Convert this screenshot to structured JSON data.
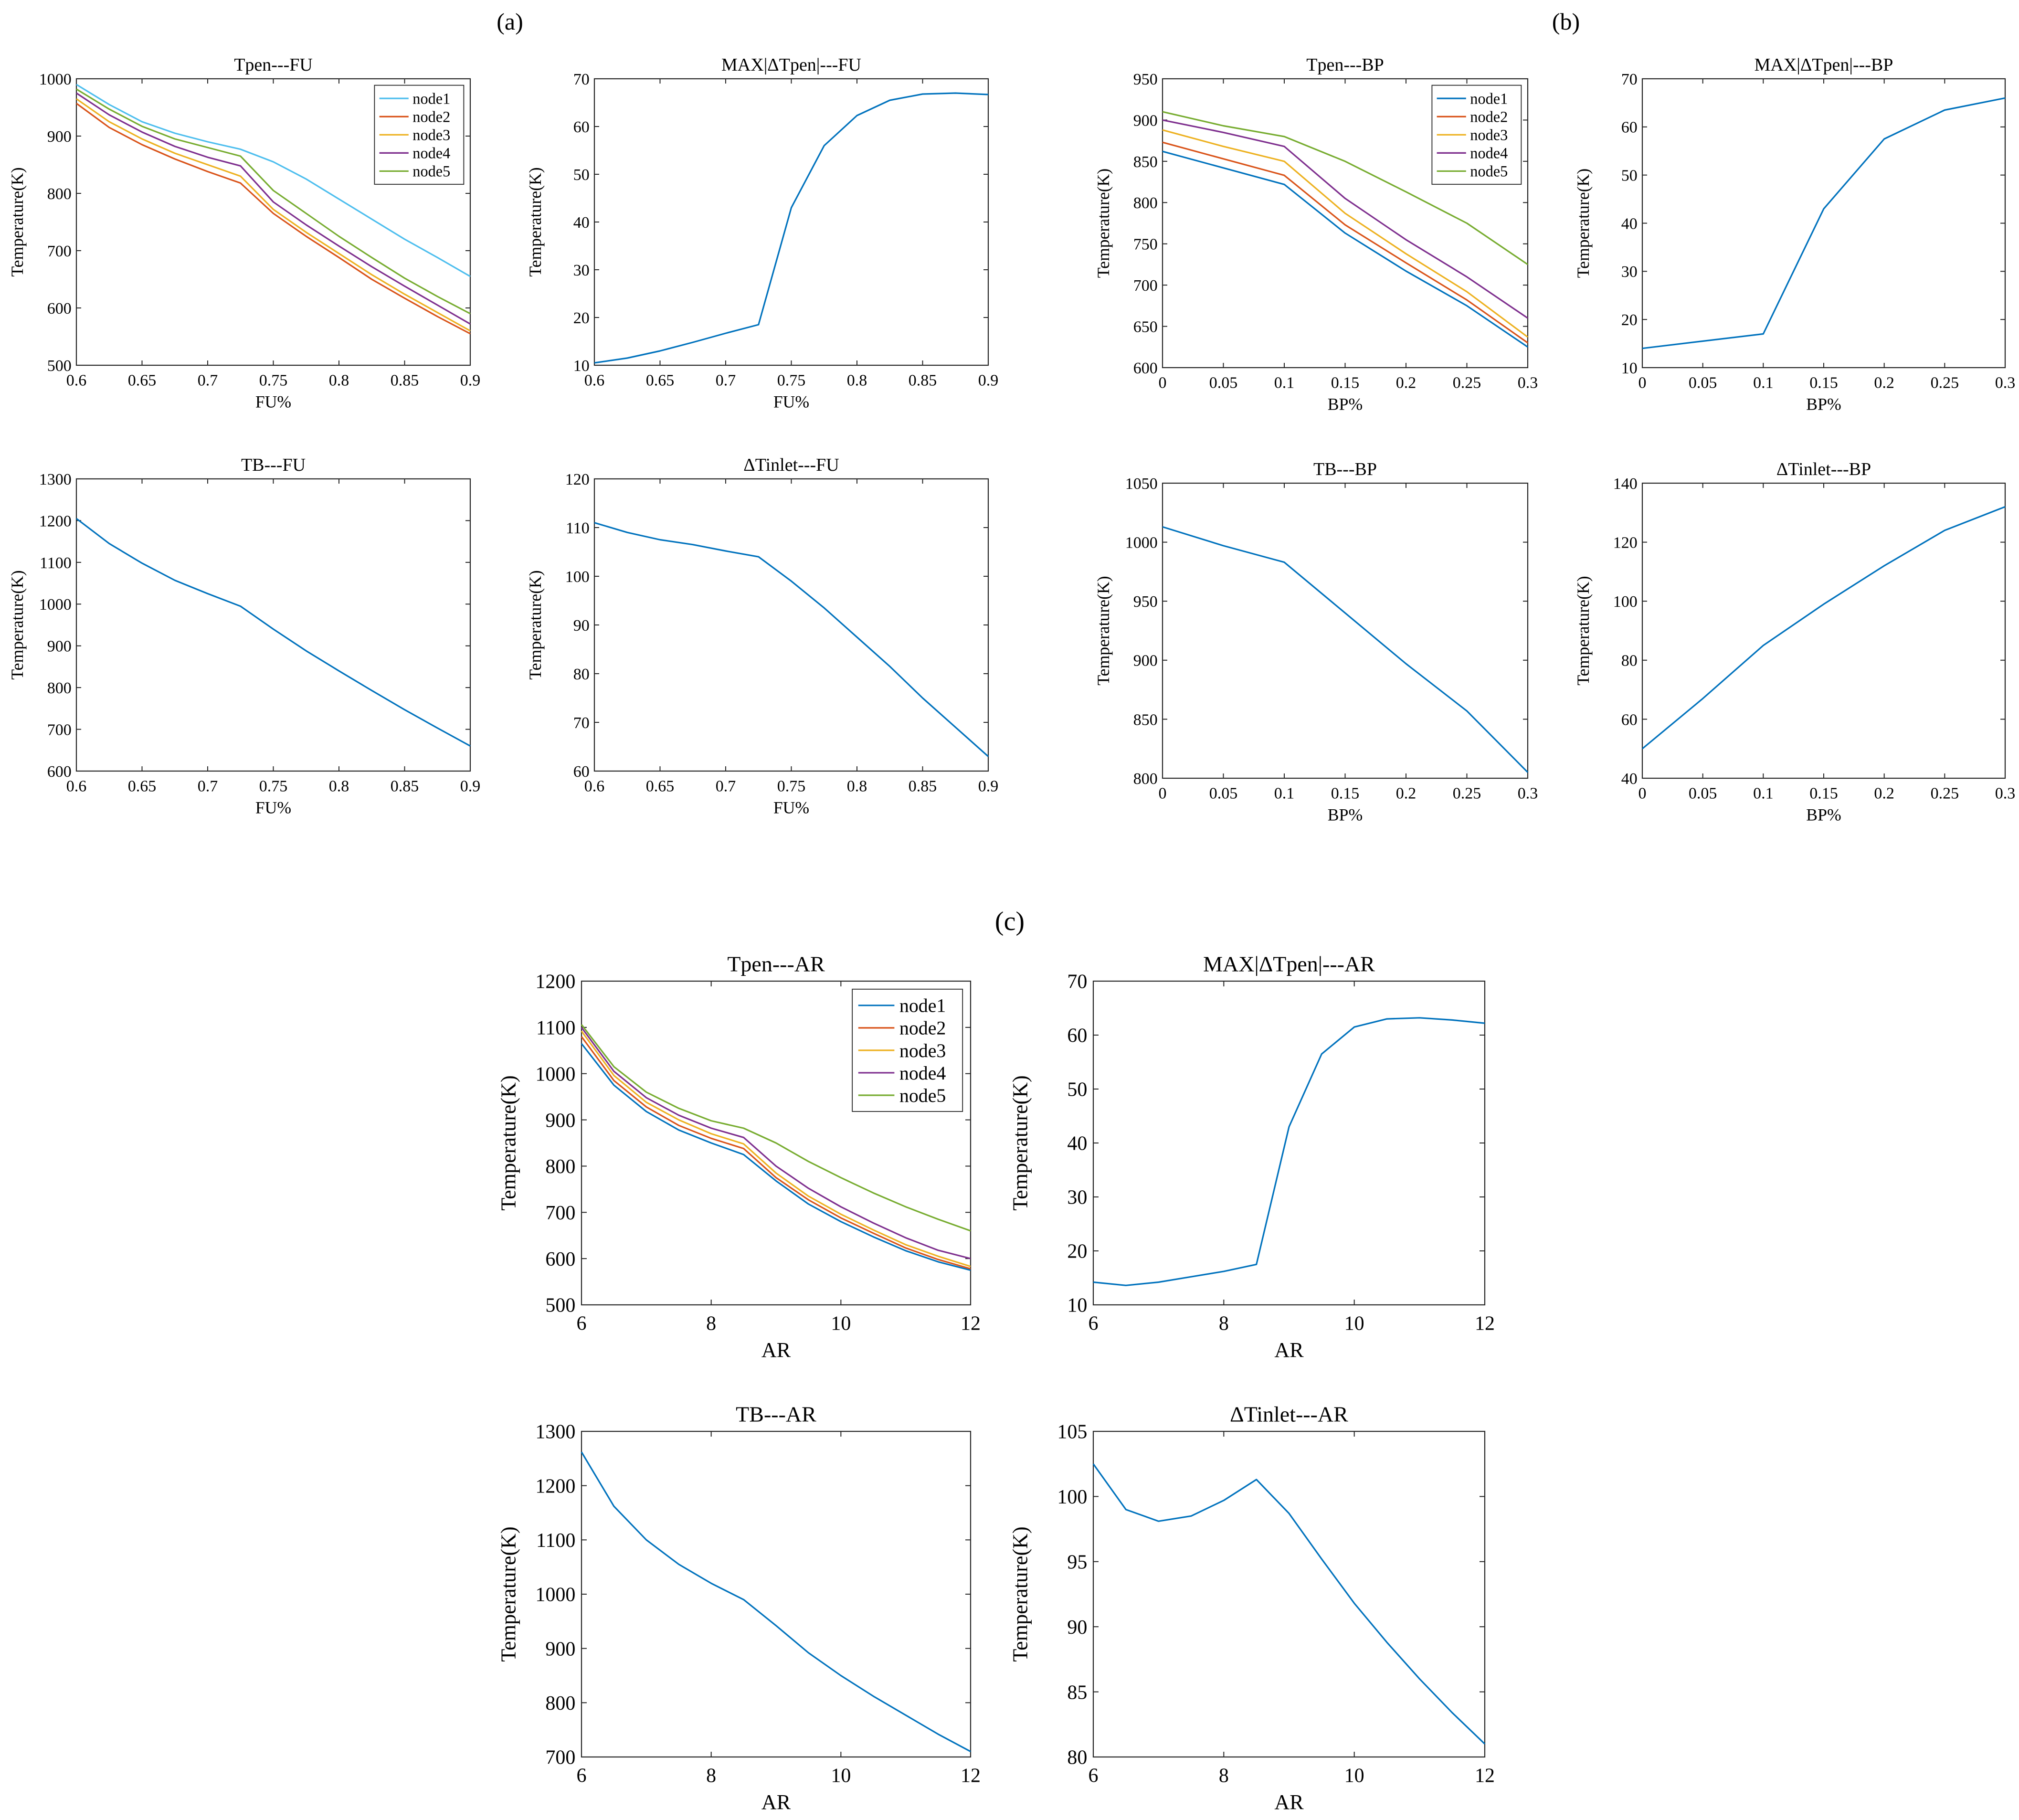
{
  "panel_labels": {
    "a": "(a)",
    "b": "(b)",
    "c": "(c)"
  },
  "colors": {
    "node1_light": "#4DBEEE",
    "node1": "#0072BD",
    "node2": "#D95319",
    "node3": "#EDB120",
    "node4": "#7E2F8E",
    "node5": "#77AC30",
    "single": "#0072BD"
  },
  "chart_data": [
    {
      "id": "tpen-fu",
      "type": "line",
      "title": "Tpen---FU",
      "xlabel": "FU%",
      "ylabel": "Temperature(K)",
      "xlim": [
        0.6,
        0.9
      ],
      "ylim": [
        500,
        1000
      ],
      "xticks": [
        0.6,
        0.65,
        0.7,
        0.75,
        0.8,
        0.85,
        0.9
      ],
      "xtick_labels": [
        "0.6",
        "0.65",
        "0.7",
        "0.75",
        "0.8",
        "0.85",
        "0.9"
      ],
      "yticks": [
        500,
        600,
        700,
        800,
        900,
        1000
      ],
      "ytick_labels": [
        "500",
        "600",
        "700",
        "800",
        "900",
        "1000"
      ],
      "legend_position": "top-right",
      "x": [
        0.6,
        0.625,
        0.65,
        0.675,
        0.7,
        0.725,
        0.75,
        0.775,
        0.8,
        0.825,
        0.85,
        0.875,
        0.9
      ],
      "series": [
        {
          "name": "node1",
          "color": "#4DBEEE",
          "values": [
            990,
            955,
            925,
            905,
            890,
            877,
            855,
            825,
            790,
            755,
            720,
            688,
            655
          ]
        },
        {
          "name": "node2",
          "color": "#D95319",
          "values": [
            957,
            915,
            885,
            860,
            838,
            818,
            765,
            725,
            688,
            650,
            617,
            585,
            555
          ]
        },
        {
          "name": "node3",
          "color": "#EDB120",
          "values": [
            965,
            925,
            895,
            870,
            850,
            830,
            772,
            732,
            695,
            658,
            624,
            592,
            560
          ]
        },
        {
          "name": "node4",
          "color": "#7E2F8E",
          "values": [
            975,
            937,
            907,
            882,
            863,
            848,
            785,
            745,
            708,
            672,
            638,
            605,
            572
          ]
        },
        {
          "name": "node5",
          "color": "#77AC30",
          "values": [
            982,
            947,
            917,
            895,
            880,
            865,
            805,
            765,
            725,
            688,
            652,
            620,
            590
          ]
        }
      ]
    },
    {
      "id": "maxdtpen-fu",
      "type": "line",
      "title": "MAX|ΔTpen|---FU",
      "xlabel": "FU%",
      "ylabel": "Temperature(K)",
      "xlim": [
        0.6,
        0.9
      ],
      "ylim": [
        10,
        70
      ],
      "xticks": [
        0.6,
        0.65,
        0.7,
        0.75,
        0.8,
        0.85,
        0.9
      ],
      "xtick_labels": [
        "0.6",
        "0.65",
        "0.7",
        "0.75",
        "0.8",
        "0.85",
        "0.9"
      ],
      "yticks": [
        10,
        20,
        30,
        40,
        50,
        60,
        70
      ],
      "ytick_labels": [
        "10",
        "20",
        "30",
        "40",
        "50",
        "60",
        "70"
      ],
      "x": [
        0.6,
        0.625,
        0.65,
        0.675,
        0.7,
        0.725,
        0.75,
        0.775,
        0.8,
        0.825,
        0.85,
        0.875,
        0.9
      ],
      "series": [
        {
          "color": "#0072BD",
          "values": [
            10.5,
            11.5,
            13,
            14.8,
            16.7,
            18.5,
            43,
            56,
            62.3,
            65.5,
            66.8,
            67,
            66.7
          ]
        }
      ]
    },
    {
      "id": "tb-fu",
      "type": "line",
      "title": "TB---FU",
      "xlabel": "FU%",
      "ylabel": "Temperature(K)",
      "xlim": [
        0.6,
        0.9
      ],
      "ylim": [
        600,
        1300
      ],
      "xticks": [
        0.6,
        0.65,
        0.7,
        0.75,
        0.8,
        0.85,
        0.9
      ],
      "xtick_labels": [
        "0.6",
        "0.65",
        "0.7",
        "0.75",
        "0.8",
        "0.85",
        "0.9"
      ],
      "yticks": [
        600,
        700,
        800,
        900,
        1000,
        1100,
        1200,
        1300
      ],
      "ytick_labels": [
        "600",
        "700",
        "800",
        "900",
        "1000",
        "1100",
        "1200",
        "1300"
      ],
      "x": [
        0.6,
        0.625,
        0.65,
        0.675,
        0.7,
        0.725,
        0.75,
        0.775,
        0.8,
        0.825,
        0.85,
        0.875,
        0.9
      ],
      "series": [
        {
          "color": "#0072BD",
          "values": [
            1205,
            1145,
            1098,
            1057,
            1025,
            995,
            940,
            888,
            840,
            793,
            747,
            703,
            660
          ]
        }
      ]
    },
    {
      "id": "dtinlet-fu",
      "type": "line",
      "title": "ΔTinlet---FU",
      "xlabel": "FU%",
      "ylabel": "Temperature(K)",
      "xlim": [
        0.6,
        0.9
      ],
      "ylim": [
        60,
        120
      ],
      "xticks": [
        0.6,
        0.65,
        0.7,
        0.75,
        0.8,
        0.85,
        0.9
      ],
      "xtick_labels": [
        "0.6",
        "0.65",
        "0.7",
        "0.75",
        "0.8",
        "0.85",
        "0.9"
      ],
      "yticks": [
        60,
        70,
        80,
        90,
        100,
        110,
        120
      ],
      "ytick_labels": [
        "60",
        "70",
        "80",
        "90",
        "100",
        "110",
        "120"
      ],
      "x": [
        0.6,
        0.625,
        0.65,
        0.675,
        0.7,
        0.725,
        0.75,
        0.775,
        0.8,
        0.825,
        0.85,
        0.875,
        0.9
      ],
      "series": [
        {
          "color": "#0072BD",
          "values": [
            111,
            109,
            107.5,
            106.5,
            105.2,
            104,
            99,
            93.5,
            87.5,
            81.5,
            75,
            69,
            63
          ]
        }
      ]
    },
    {
      "id": "tpen-bp",
      "type": "line",
      "title": "Tpen---BP",
      "xlabel": "BP%",
      "ylabel": "Temperature(K)",
      "xlim": [
        0,
        0.3
      ],
      "ylim": [
        600,
        950
      ],
      "xticks": [
        0,
        0.05,
        0.1,
        0.15,
        0.2,
        0.25,
        0.3
      ],
      "xtick_labels": [
        "0",
        "0.05",
        "0.1",
        "0.15",
        "0.2",
        "0.25",
        "0.3"
      ],
      "yticks": [
        600,
        650,
        700,
        750,
        800,
        850,
        900,
        950
      ],
      "ytick_labels": [
        "600",
        "650",
        "700",
        "750",
        "800",
        "850",
        "900",
        "950"
      ],
      "legend_position": "top-right",
      "x": [
        0,
        0.05,
        0.1,
        0.15,
        0.2,
        0.25,
        0.3
      ],
      "series": [
        {
          "name": "node1",
          "color": "#0072BD",
          "values": [
            862,
            842,
            822,
            763,
            717,
            675,
            625
          ]
        },
        {
          "name": "node2",
          "color": "#D95319",
          "values": [
            873,
            853,
            833,
            773,
            727,
            682,
            630
          ]
        },
        {
          "name": "node3",
          "color": "#EDB120",
          "values": [
            888,
            868,
            850,
            787,
            738,
            692,
            637
          ]
        },
        {
          "name": "node4",
          "color": "#7E2F8E",
          "values": [
            900,
            885,
            868,
            805,
            755,
            710,
            660
          ]
        },
        {
          "name": "node5",
          "color": "#77AC30",
          "values": [
            910,
            893,
            880,
            850,
            813,
            775,
            725
          ]
        }
      ]
    },
    {
      "id": "maxdtpen-bp",
      "type": "line",
      "title": "MAX|ΔTpen|---BP",
      "xlabel": "BP%",
      "ylabel": "Temperature(K)",
      "xlim": [
        0,
        0.3
      ],
      "ylim": [
        10,
        70
      ],
      "xticks": [
        0,
        0.05,
        0.1,
        0.15,
        0.2,
        0.25,
        0.3
      ],
      "xtick_labels": [
        "0",
        "0.05",
        "0.1",
        "0.15",
        "0.2",
        "0.25",
        "0.3"
      ],
      "yticks": [
        10,
        20,
        30,
        40,
        50,
        60,
        70
      ],
      "ytick_labels": [
        "10",
        "20",
        "30",
        "40",
        "50",
        "60",
        "70"
      ],
      "x": [
        0,
        0.05,
        0.1,
        0.15,
        0.2,
        0.25,
        0.3
      ],
      "series": [
        {
          "color": "#0072BD",
          "values": [
            14,
            15.5,
            17,
            43,
            57.5,
            63.5,
            66
          ]
        }
      ]
    },
    {
      "id": "tb-bp",
      "type": "line",
      "title": "TB---BP",
      "xlabel": "BP%",
      "ylabel": "Temperature(K)",
      "xlim": [
        0,
        0.3
      ],
      "ylim": [
        800,
        1050
      ],
      "xticks": [
        0,
        0.05,
        0.1,
        0.15,
        0.2,
        0.25,
        0.3
      ],
      "xtick_labels": [
        "0",
        "0.05",
        "0.1",
        "0.15",
        "0.2",
        "0.25",
        "0.3"
      ],
      "yticks": [
        800,
        850,
        900,
        950,
        1000,
        1050
      ],
      "ytick_labels": [
        "800",
        "850",
        "900",
        "950",
        "1000",
        "1050"
      ],
      "x": [
        0,
        0.05,
        0.1,
        0.15,
        0.2,
        0.25,
        0.3
      ],
      "series": [
        {
          "color": "#0072BD",
          "values": [
            1013,
            997,
            983,
            940,
            897,
            857,
            805
          ]
        }
      ]
    },
    {
      "id": "dtinlet-bp",
      "type": "line",
      "title": "ΔTinlet---BP",
      "xlabel": "BP%",
      "ylabel": "Temperature(K)",
      "xlim": [
        0,
        0.3
      ],
      "ylim": [
        40,
        140
      ],
      "xticks": [
        0,
        0.05,
        0.1,
        0.15,
        0.2,
        0.25,
        0.3
      ],
      "xtick_labels": [
        "0",
        "0.05",
        "0.1",
        "0.15",
        "0.2",
        "0.25",
        "0.3"
      ],
      "yticks": [
        40,
        60,
        80,
        100,
        120,
        140
      ],
      "ytick_labels": [
        "40",
        "60",
        "80",
        "100",
        "120",
        "140"
      ],
      "x": [
        0,
        0.05,
        0.1,
        0.15,
        0.2,
        0.25,
        0.3
      ],
      "series": [
        {
          "color": "#0072BD",
          "values": [
            50,
            67,
            85,
            99,
            112,
            124,
            132
          ]
        }
      ]
    },
    {
      "id": "tpen-ar",
      "type": "line",
      "title": "Tpen---AR",
      "xlabel": "AR",
      "ylabel": "Temperature(K)",
      "xlim": [
        6,
        12
      ],
      "ylim": [
        500,
        1200
      ],
      "xticks": [
        6,
        8,
        10,
        12
      ],
      "xtick_labels": [
        "6",
        "8",
        "10",
        "12"
      ],
      "yticks": [
        500,
        600,
        700,
        800,
        900,
        1000,
        1100,
        1200
      ],
      "ytick_labels": [
        "500",
        "600",
        "700",
        "800",
        "900",
        "1000",
        "1100",
        "1200"
      ],
      "legend_position": "top-right",
      "x": [
        6,
        6.5,
        7,
        7.5,
        8,
        8.5,
        9,
        9.5,
        10,
        10.5,
        11,
        11.5,
        12
      ],
      "series": [
        {
          "name": "node1",
          "color": "#0072BD",
          "values": [
            1065,
            975,
            918,
            878,
            850,
            825,
            768,
            718,
            680,
            647,
            617,
            593,
            575
          ]
        },
        {
          "name": "node2",
          "color": "#D95319",
          "values": [
            1080,
            985,
            928,
            888,
            860,
            838,
            775,
            727,
            688,
            655,
            623,
            598,
            578
          ]
        },
        {
          "name": "node3",
          "color": "#EDB120",
          "values": [
            1092,
            996,
            938,
            900,
            870,
            848,
            785,
            735,
            696,
            662,
            630,
            605,
            583
          ]
        },
        {
          "name": "node4",
          "color": "#7E2F8E",
          "values": [
            1100,
            1005,
            948,
            910,
            882,
            862,
            800,
            752,
            712,
            677,
            645,
            618,
            600
          ]
        },
        {
          "name": "node5",
          "color": "#77AC30",
          "values": [
            1106,
            1015,
            960,
            925,
            898,
            882,
            850,
            810,
            775,
            742,
            712,
            685,
            660
          ]
        }
      ]
    },
    {
      "id": "maxdtpen-ar",
      "type": "line",
      "title": "MAX|ΔTpen|---AR",
      "xlabel": "AR",
      "ylabel": "Temperature(K)",
      "xlim": [
        6,
        12
      ],
      "ylim": [
        10,
        70
      ],
      "xticks": [
        6,
        8,
        10,
        12
      ],
      "xtick_labels": [
        "6",
        "8",
        "10",
        "12"
      ],
      "yticks": [
        10,
        20,
        30,
        40,
        50,
        60,
        70
      ],
      "ytick_labels": [
        "10",
        "20",
        "30",
        "40",
        "50",
        "60",
        "70"
      ],
      "x": [
        6,
        6.5,
        7,
        7.5,
        8,
        8.5,
        9,
        9.5,
        10,
        10.5,
        11,
        11.5,
        12
      ],
      "series": [
        {
          "color": "#0072BD",
          "values": [
            14.2,
            13.6,
            14.2,
            15.2,
            16.2,
            17.5,
            43,
            56.5,
            61.5,
            63,
            63.2,
            62.8,
            62.2
          ]
        }
      ]
    },
    {
      "id": "tb-ar",
      "type": "line",
      "title": "TB---AR",
      "xlabel": "AR",
      "ylabel": "Temperature(K)",
      "xlim": [
        6,
        12
      ],
      "ylim": [
        700,
        1300
      ],
      "xticks": [
        6,
        8,
        10,
        12
      ],
      "xtick_labels": [
        "6",
        "8",
        "10",
        "12"
      ],
      "yticks": [
        700,
        800,
        900,
        1000,
        1100,
        1200,
        1300
      ],
      "ytick_labels": [
        "700",
        "800",
        "900",
        "1000",
        "1100",
        "1200",
        "1300"
      ],
      "x": [
        6,
        6.5,
        7,
        7.5,
        8,
        8.5,
        9,
        9.5,
        10,
        10.5,
        11,
        11.5,
        12
      ],
      "series": [
        {
          "color": "#0072BD",
          "values": [
            1262,
            1162,
            1100,
            1055,
            1020,
            990,
            942,
            892,
            850,
            812,
            777,
            742,
            710
          ]
        }
      ]
    },
    {
      "id": "dtinlet-ar",
      "type": "line",
      "title": "ΔTinlet---AR",
      "xlabel": "AR",
      "ylabel": "Temperature(K)",
      "xlim": [
        6,
        12
      ],
      "ylim": [
        80,
        105
      ],
      "xticks": [
        6,
        8,
        10,
        12
      ],
      "xtick_labels": [
        "6",
        "8",
        "10",
        "12"
      ],
      "yticks": [
        80,
        85,
        90,
        95,
        100,
        105
      ],
      "ytick_labels": [
        "80",
        "85",
        "90",
        "95",
        "100",
        "105"
      ],
      "x": [
        6,
        6.5,
        7,
        7.5,
        8,
        8.5,
        9,
        9.5,
        10,
        10.5,
        11,
        11.5,
        12
      ],
      "series": [
        {
          "color": "#0072BD",
          "values": [
            102.5,
            99,
            98.1,
            98.5,
            99.7,
            101.3,
            98.7,
            95.2,
            91.8,
            88.8,
            86,
            83.4,
            81
          ]
        }
      ]
    }
  ]
}
